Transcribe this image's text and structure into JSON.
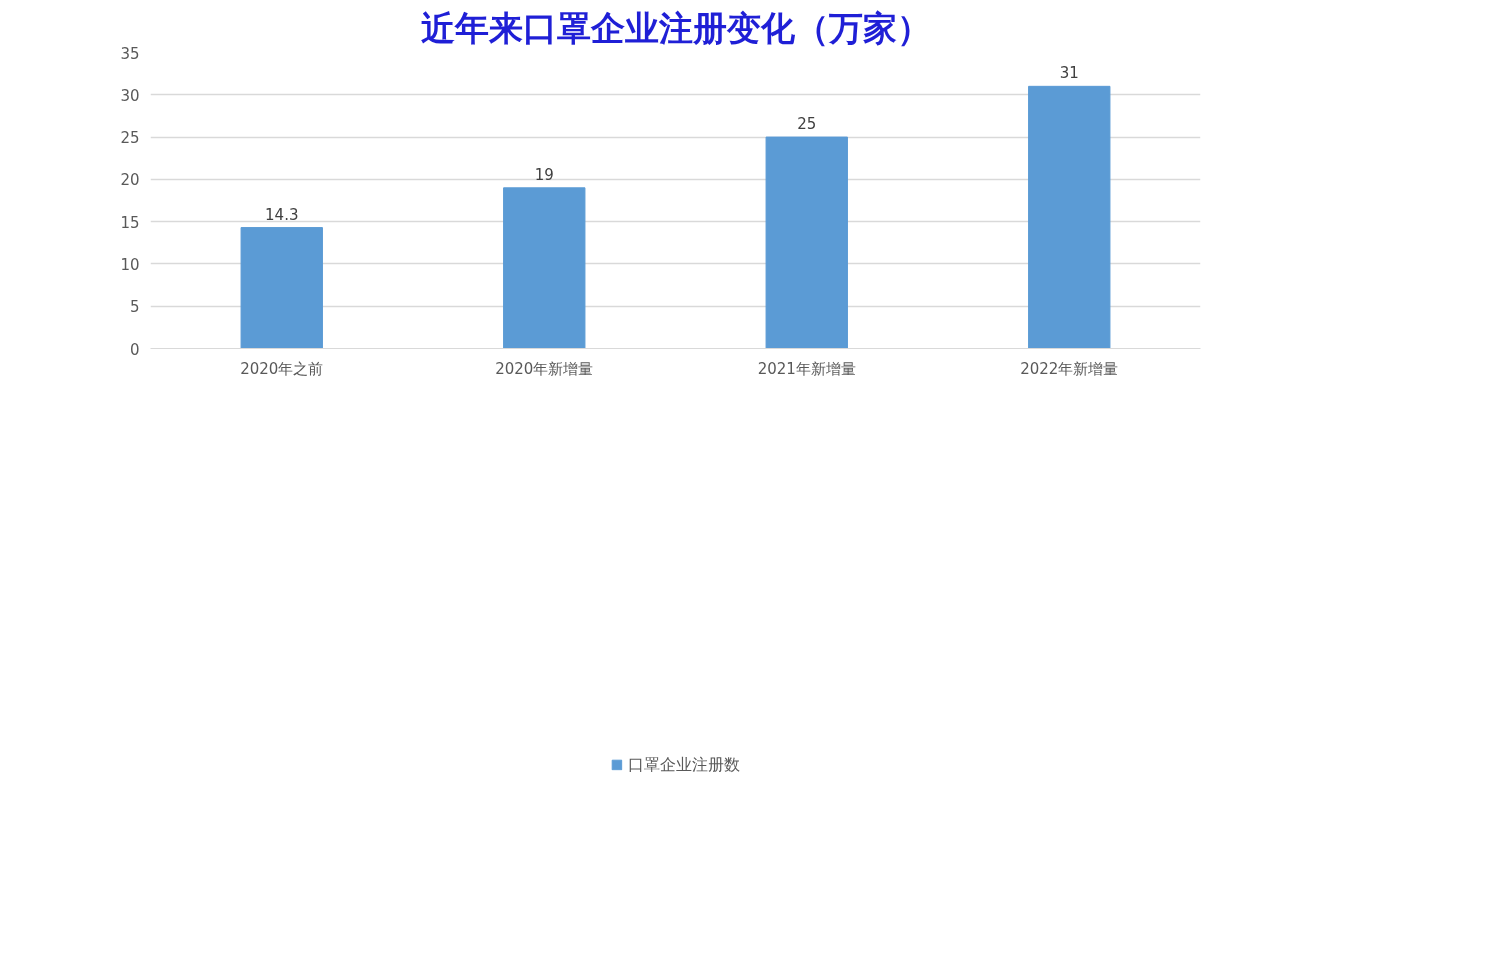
{
  "chart_data": {
    "type": "bar",
    "title": "近年来口罩企业注册变化（万家）",
    "categories": [
      "2020年之前",
      "2020年新增量",
      "2021年新增量",
      "2022年新增量"
    ],
    "series": [
      {
        "name": "口罩企业注册数",
        "color": "#5b9bd5",
        "values": [
          14.3,
          19,
          25,
          31
        ]
      }
    ],
    "ylim": [
      0,
      35
    ],
    "yticks": [
      0,
      5,
      10,
      15,
      20,
      25,
      30,
      35
    ],
    "grid": "y",
    "legend": "bottom",
    "data_labels": true
  }
}
